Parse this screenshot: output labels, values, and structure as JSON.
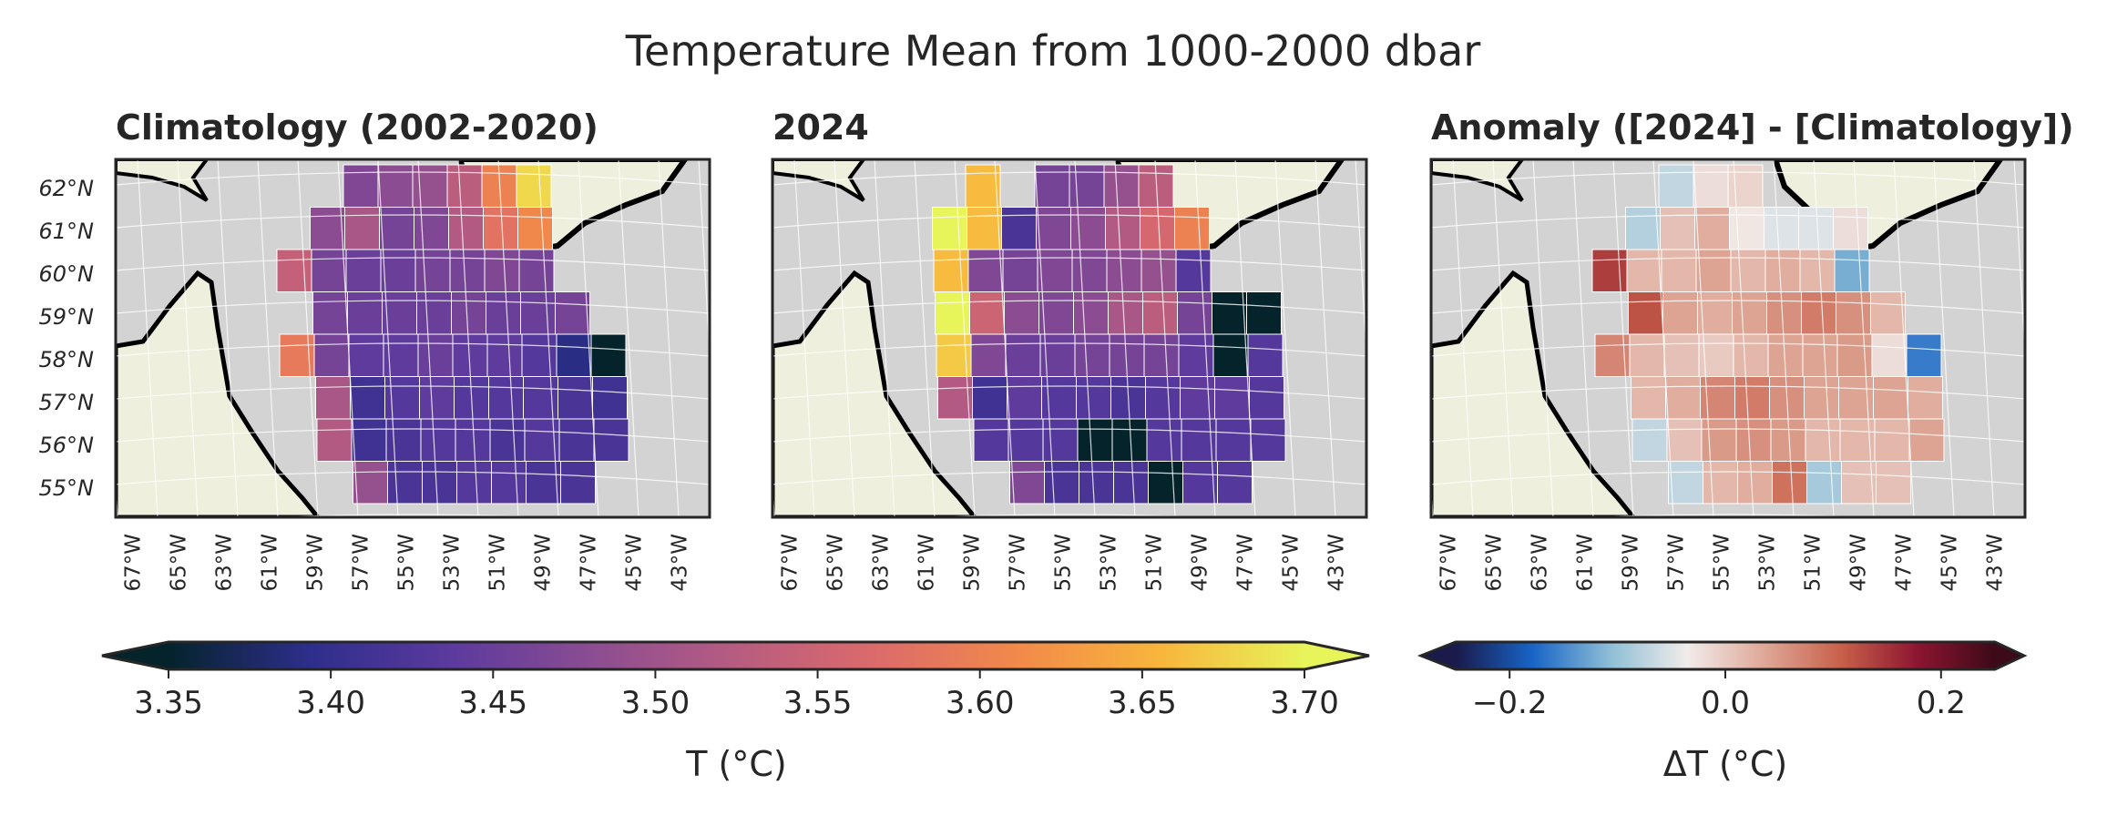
{
  "suptitle": "Temperature Mean from 1000-2000 dbar",
  "lat_ticks": [
    "62°N",
    "61°N",
    "60°N",
    "59°N",
    "58°N",
    "57°N",
    "56°N",
    "55°N"
  ],
  "lon_ticks": [
    "67°W",
    "65°W",
    "63°W",
    "61°W",
    "59°W",
    "57°W",
    "55°W",
    "53°W",
    "51°W",
    "49°W",
    "47°W",
    "45°W",
    "43°W"
  ],
  "colors": {
    "land": "#efefdd",
    "ocean_background": "#d3d3d3",
    "coastline": "#000000",
    "grid_line": "#ffffff",
    "thermal_colormap": [
      "#04232b",
      "#2e2e8c",
      "#5c3a9e",
      "#8c4d91",
      "#b75c80",
      "#dc6b6a",
      "#f28a49",
      "#f8b63c",
      "#e7f45a"
    ],
    "balance_colormap": [
      "#1a1a4b",
      "#1864c6",
      "#8ebed6",
      "#f1ecea",
      "#dfa898",
      "#c8604a",
      "#8c1530",
      "#3c0a18"
    ]
  },
  "chart_data": [
    {
      "type": "heatmap",
      "title": "Climatology (2002-2020)",
      "panel": "left",
      "colormap": "thermal",
      "vmin": 3.35,
      "vmax": 3.7,
      "row_lats": [
        62,
        61,
        60,
        59,
        58,
        57,
        56,
        55
      ],
      "column_lons": [
        -67,
        -65,
        -63,
        -61,
        -59,
        -57,
        -55,
        -53,
        -51,
        -49,
        -47,
        -45,
        -43
      ],
      "values": [
        [
          null,
          null,
          null,
          null,
          null,
          3.47,
          3.48,
          3.49,
          3.53,
          3.6,
          3.68,
          null,
          null
        ],
        [
          null,
          null,
          null,
          null,
          3.48,
          3.51,
          3.46,
          3.47,
          3.52,
          3.58,
          3.61,
          null,
          null
        ],
        [
          null,
          null,
          null,
          3.54,
          3.46,
          3.45,
          3.45,
          3.46,
          3.46,
          3.47,
          3.46,
          null,
          null
        ],
        [
          null,
          null,
          null,
          null,
          3.46,
          3.45,
          3.45,
          3.45,
          3.46,
          3.45,
          3.45,
          3.46,
          null
        ],
        [
          null,
          null,
          null,
          3.59,
          3.46,
          3.44,
          3.44,
          3.45,
          3.44,
          3.44,
          3.43,
          3.39,
          3.34
        ],
        [
          null,
          null,
          null,
          null,
          3.51,
          3.41,
          3.43,
          3.44,
          3.43,
          3.43,
          3.43,
          3.42,
          3.41
        ],
        [
          null,
          null,
          null,
          null,
          3.52,
          3.41,
          3.42,
          3.43,
          3.43,
          3.42,
          3.43,
          3.42,
          3.42
        ],
        [
          null,
          null,
          null,
          null,
          null,
          3.49,
          3.42,
          3.42,
          3.43,
          3.43,
          3.42,
          3.42,
          null
        ]
      ]
    },
    {
      "type": "heatmap",
      "title": "2024",
      "panel": "middle",
      "colormap": "thermal",
      "vmin": 3.35,
      "vmax": 3.7,
      "row_lats": [
        62,
        61,
        60,
        59,
        58,
        57,
        56,
        55
      ],
      "column_lons": [
        -67,
        -65,
        -63,
        -61,
        -59,
        -57,
        -55,
        -53,
        -51,
        -49,
        -47,
        -45,
        -43
      ],
      "values": [
        [
          null,
          null,
          null,
          null,
          3.66,
          null,
          3.46,
          3.46,
          3.49,
          3.53,
          null,
          null,
          null
        ],
        [
          null,
          null,
          null,
          3.7,
          3.66,
          3.42,
          3.47,
          3.48,
          3.52,
          3.56,
          3.6,
          null,
          null
        ],
        [
          null,
          null,
          null,
          3.66,
          3.47,
          3.46,
          3.47,
          3.47,
          3.48,
          3.49,
          3.43,
          null,
          null
        ],
        [
          null,
          null,
          null,
          3.7,
          3.55,
          3.48,
          3.47,
          3.48,
          3.51,
          3.53,
          3.46,
          3.34,
          3.34
        ],
        [
          null,
          null,
          null,
          3.67,
          3.47,
          3.45,
          3.45,
          3.46,
          3.46,
          3.46,
          3.44,
          3.34,
          3.43
        ],
        [
          null,
          null,
          null,
          3.52,
          3.41,
          3.44,
          3.43,
          3.43,
          3.42,
          3.43,
          3.44,
          3.44,
          3.43
        ],
        [
          null,
          null,
          null,
          null,
          3.43,
          3.43,
          3.43,
          3.34,
          3.34,
          3.43,
          3.43,
          3.43,
          3.43
        ],
        [
          null,
          null,
          null,
          null,
          null,
          3.47,
          3.42,
          3.42,
          3.42,
          3.34,
          3.43,
          3.43,
          null
        ]
      ]
    },
    {
      "type": "heatmap",
      "title": "Anomaly ([2024] - [Climatology])",
      "panel": "right",
      "colormap": "balance",
      "vmin": -0.25,
      "vmax": 0.25,
      "row_lats": [
        62,
        61,
        60,
        59,
        58,
        57,
        56,
        55
      ],
      "column_lons": [
        -67,
        -65,
        -63,
        -61,
        -59,
        -57,
        -55,
        -53,
        -51,
        -49,
        -47,
        -45,
        -43
      ],
      "values": [
        [
          null,
          null,
          null,
          null,
          null,
          -0.07,
          -0.02,
          -0.01,
          null,
          null,
          null,
          null,
          null
        ],
        [
          null,
          null,
          null,
          null,
          -0.08,
          0.01,
          0.03,
          -0.03,
          -0.05,
          -0.05,
          -0.02,
          null,
          null
        ],
        [
          null,
          null,
          null,
          0.14,
          0.02,
          0.02,
          0.04,
          0.02,
          0.03,
          0.02,
          -0.12,
          null,
          null
        ],
        [
          null,
          null,
          null,
          null,
          0.12,
          0.04,
          0.03,
          0.04,
          0.06,
          0.08,
          0.06,
          0.02,
          null
        ],
        [
          null,
          null,
          null,
          0.07,
          0.02,
          0.01,
          0.0,
          0.02,
          0.04,
          0.04,
          0.05,
          -0.02,
          -0.16
        ],
        [
          null,
          null,
          null,
          null,
          0.02,
          0.03,
          0.07,
          0.08,
          0.06,
          0.04,
          0.04,
          0.04,
          0.03
        ],
        [
          null,
          null,
          null,
          null,
          -0.07,
          0.01,
          0.05,
          0.06,
          0.05,
          0.02,
          0.02,
          0.02,
          0.04
        ],
        [
          null,
          null,
          null,
          null,
          null,
          -0.07,
          0.02,
          0.03,
          0.09,
          -0.09,
          0.01,
          0.01,
          null
        ]
      ]
    }
  ],
  "colorbars": [
    {
      "name": "temperature",
      "label": "T (°C)",
      "ticks": [
        "3.35",
        "3.40",
        "3.45",
        "3.50",
        "3.55",
        "3.60",
        "3.65",
        "3.70"
      ],
      "tick_values": [
        3.35,
        3.4,
        3.45,
        3.5,
        3.55,
        3.6,
        3.65,
        3.7
      ],
      "vmin": 3.35,
      "vmax": 3.7,
      "extend": "both"
    },
    {
      "name": "anomaly",
      "label": "ΔT (°C)",
      "ticks": [
        "−0.2",
        "0.0",
        "0.2"
      ],
      "tick_values": [
        -0.2,
        0.0,
        0.2
      ],
      "vmin": -0.25,
      "vmax": 0.25,
      "extend": "both"
    }
  ]
}
